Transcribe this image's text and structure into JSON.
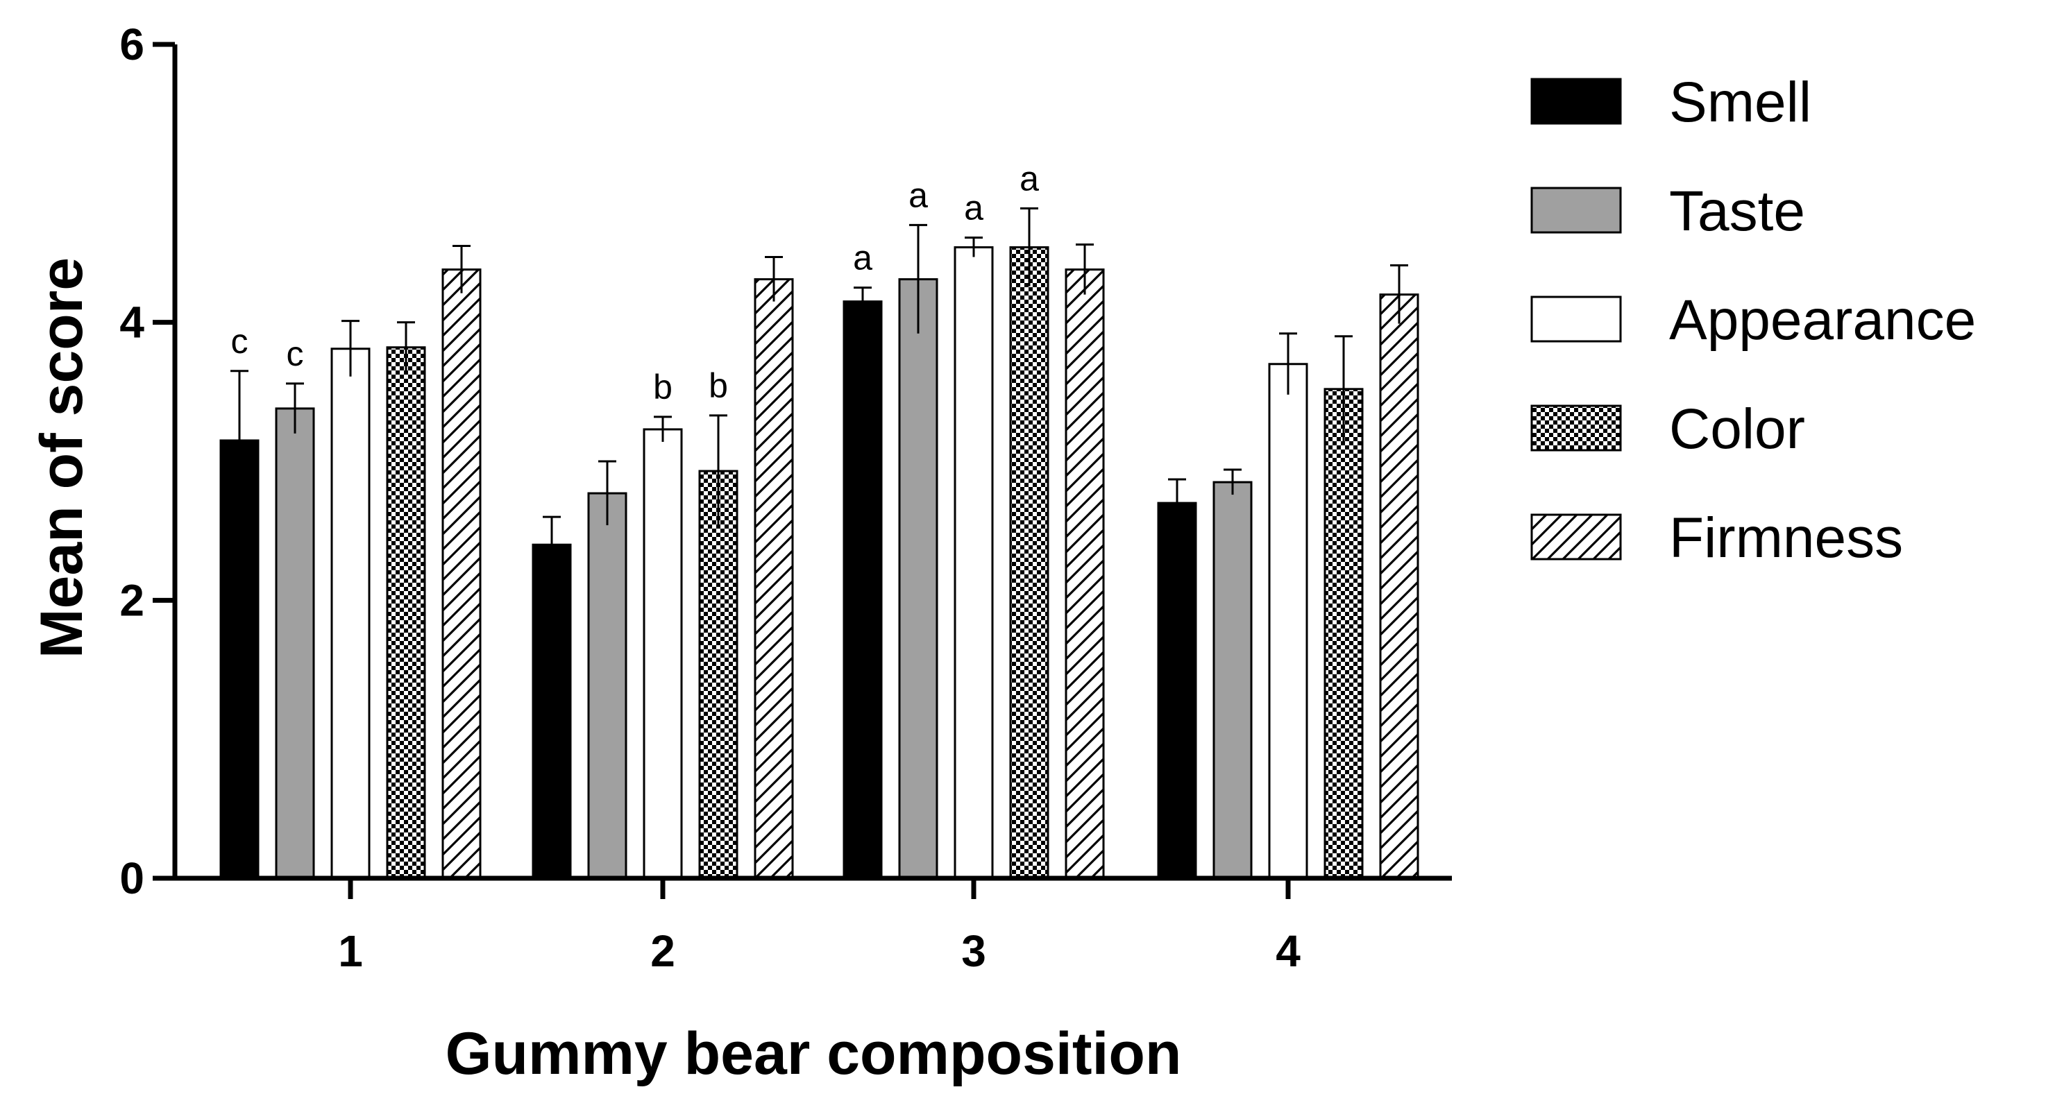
{
  "chart_data": {
    "type": "bar",
    "xlabel": "Gummy bear composition",
    "ylabel": "Mean of score",
    "categories": [
      "1",
      "2",
      "3",
      "4"
    ],
    "ylim": [
      0,
      6
    ],
    "yticks": [
      "0",
      "2",
      "4",
      "6"
    ],
    "legend_position": "right",
    "series": [
      {
        "name": "Smell",
        "fill": "solid-black",
        "values": [
          3.15,
          2.4,
          4.15,
          2.7
        ],
        "errors": [
          0.5,
          0.2,
          0.1,
          0.17
        ],
        "sig": [
          "c",
          "",
          "a",
          ""
        ]
      },
      {
        "name": "Taste",
        "fill": "solid-gray",
        "values": [
          3.38,
          2.77,
          4.31,
          2.85
        ],
        "errors": [
          0.18,
          0.23,
          0.39,
          0.09
        ],
        "sig": [
          "c",
          "",
          "a",
          ""
        ]
      },
      {
        "name": "Appearance",
        "fill": "white",
        "values": [
          3.81,
          3.23,
          4.54,
          3.7
        ],
        "errors": [
          0.2,
          0.09,
          0.07,
          0.22
        ],
        "sig": [
          "",
          "b",
          "a",
          ""
        ]
      },
      {
        "name": "Color",
        "fill": "checkerboard",
        "values": [
          3.82,
          2.93,
          4.54,
          3.52
        ],
        "errors": [
          0.18,
          0.4,
          0.28,
          0.38
        ],
        "sig": [
          "",
          "b",
          "a",
          ""
        ]
      },
      {
        "name": "Firmness",
        "fill": "diagonal-hatch",
        "values": [
          4.38,
          4.31,
          4.38,
          4.2
        ],
        "errors": [
          0.17,
          0.16,
          0.18,
          0.21
        ],
        "sig": [
          "",
          "",
          "",
          ""
        ]
      }
    ],
    "colors": {
      "axis": "#000000",
      "smell": "#000000",
      "taste": "#a0a0a0",
      "appearance": "#ffffff"
    }
  }
}
